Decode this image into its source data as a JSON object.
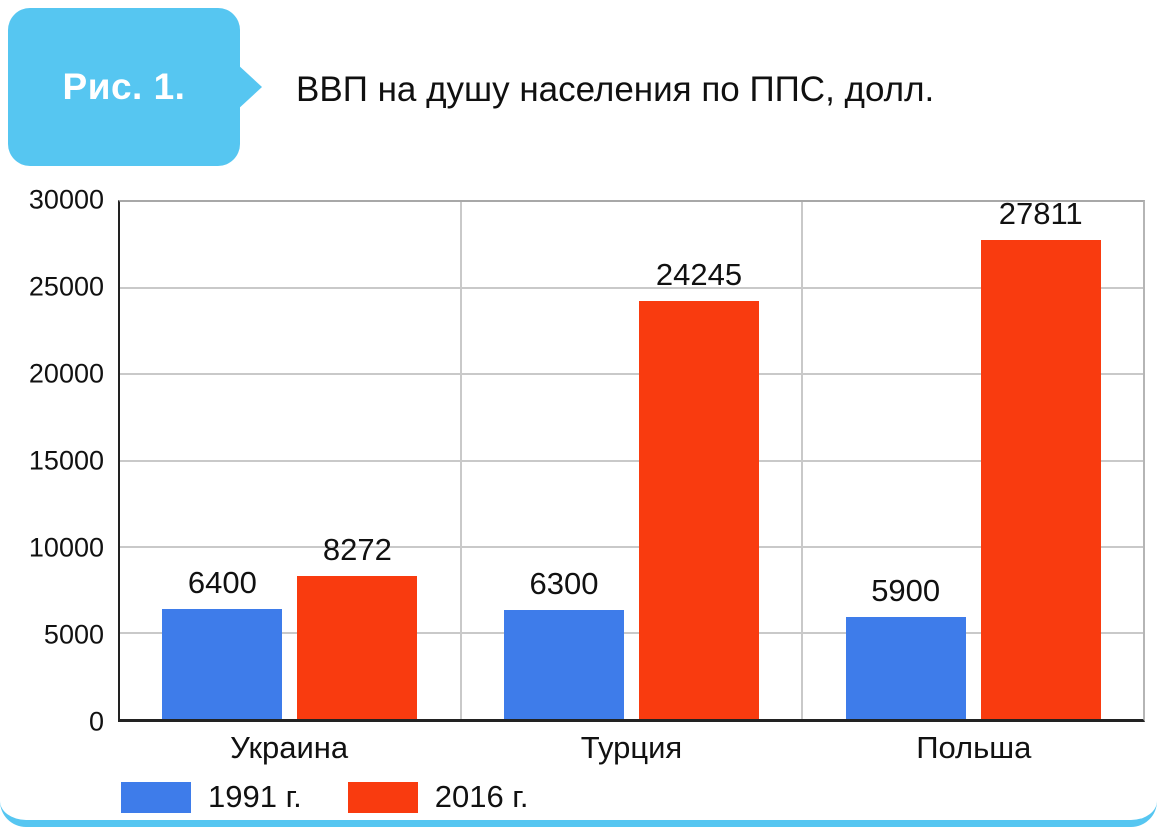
{
  "figure": {
    "badge": "Рис. 1.",
    "title": "ВВП на душу населения по ППС, долл."
  },
  "colors": {
    "accent": "#56C6F1",
    "grid": "#c9c9c9",
    "series_1991": "#3E7CEA",
    "series_2016": "#F93B0F"
  },
  "chart_data": {
    "type": "bar",
    "title": "ВВП на душу населения по ППС, долл.",
    "categories": [
      "Украина",
      "Турция",
      "Польша"
    ],
    "series": [
      {
        "name": "1991 г.",
        "color": "#3E7CEA",
        "values": [
          6400,
          6300,
          5900
        ]
      },
      {
        "name": "2016 г.",
        "color": "#F93B0F",
        "values": [
          8272,
          24245,
          27811
        ]
      }
    ],
    "xlabel": "",
    "ylabel": "",
    "ylim": [
      0,
      30000
    ],
    "yticks": [
      0,
      5000,
      10000,
      15000,
      20000,
      25000,
      30000
    ],
    "grid": true,
    "legend_position": "bottom-left"
  }
}
